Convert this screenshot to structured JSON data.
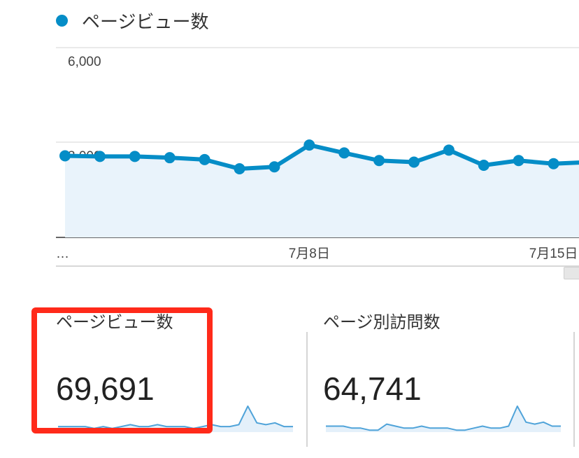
{
  "legend": {
    "series_label": "ページビュー数",
    "color": "#058dc7"
  },
  "chart_data": {
    "type": "line",
    "series": [
      {
        "name": "ページビュー数",
        "values": [
          2580,
          2560,
          2560,
          2520,
          2460,
          2170,
          2230,
          2920,
          2670,
          2430,
          2380,
          2760,
          2280,
          2430,
          2330,
          2380
        ]
      }
    ],
    "y_ticks": [
      "6,000",
      "3,000"
    ],
    "y_tick_values": [
      6000,
      3000
    ],
    "ylim": [
      0,
      6000
    ],
    "x_tick_labels": [
      "…",
      "7月8日",
      "7月15日"
    ],
    "x_tick_index": [
      0,
      7,
      14
    ],
    "fill": true,
    "line_color": "#058dc7",
    "fill_color": "#e9f3fb"
  },
  "metrics": [
    {
      "title": "ページビュー数",
      "value": "69,691",
      "sparkline": [
        3,
        3,
        3,
        3,
        2,
        3,
        2,
        3,
        4,
        3,
        3,
        4,
        3,
        3,
        3,
        2,
        3,
        4,
        3,
        3,
        4,
        14,
        5,
        4,
        5,
        3,
        3
      ]
    },
    {
      "title": "ページ別訪問数",
      "value": "64,741",
      "sparkline": [
        3,
        3,
        3,
        2,
        2,
        1,
        1,
        4,
        3,
        2,
        2,
        3,
        2,
        2,
        2,
        1,
        1,
        2,
        3,
        2,
        2,
        3,
        13,
        5,
        4,
        5,
        3,
        3
      ]
    }
  ],
  "colors": {
    "highlight": "#ff2a1a",
    "sparkline_line": "#4fa3d9",
    "sparkline_fill": "#e4f0fa"
  }
}
